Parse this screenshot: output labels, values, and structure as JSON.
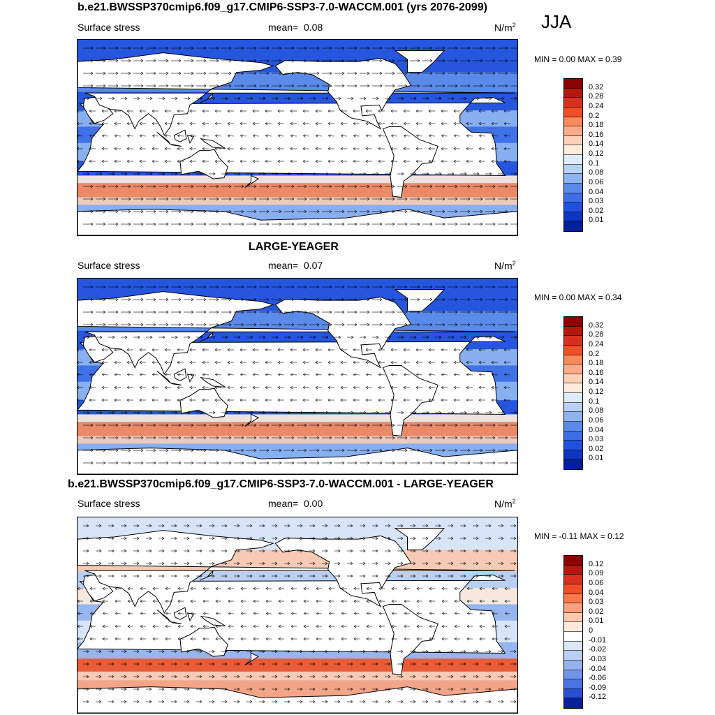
{
  "season": "JJA",
  "panels": [
    {
      "title": "b.e21.BWSSP370cmip6.f09_g17.CMIP6-SSP3-7.0-WACCM.001 (yrs 2076-2099)",
      "variable": "Surface stress",
      "mean_label": "mean=",
      "mean_value": "0.08",
      "units_base": "N/m",
      "units_exp": "2",
      "minmax": "MIN =   0.00 MAX =   0.39",
      "levels": [
        "0.32",
        "0.28",
        "0.24",
        "0.2",
        "0.18",
        "0.16",
        "0.14",
        "0.12",
        "0.1",
        "0.08",
        "0.06",
        "0.04",
        "0.03",
        "0.02",
        "0.01"
      ]
    },
    {
      "title": "LARGE-YEAGER",
      "variable": "Surface stress",
      "mean_label": "mean=",
      "mean_value": "0.07",
      "units_base": "N/m",
      "units_exp": "2",
      "minmax": "MIN =   0.00 MAX =   0.34",
      "levels": [
        "0.32",
        "0.28",
        "0.24",
        "0.2",
        "0.18",
        "0.16",
        "0.14",
        "0.12",
        "0.1",
        "0.08",
        "0.06",
        "0.04",
        "0.03",
        "0.02",
        "0.01"
      ]
    },
    {
      "title": "b.e21.BWSSP370cmip6.f09_g17.CMIP6-SSP3-7.0-WACCM.001 - LARGE-YEAGER",
      "variable": "Surface stress",
      "mean_label": "mean=",
      "mean_value": "0.00",
      "units_base": "N/m",
      "units_exp": "2",
      "minmax": "MIN =  -0.11 MAX =   0.12",
      "levels": [
        "0.12",
        "0.09",
        "0.06",
        "0.04",
        "0.03",
        "0.02",
        "0.01",
        "0",
        "-0.01",
        "-0.02",
        "-0.03",
        "-0.04",
        "-0.06",
        "-0.09",
        "-0.12"
      ]
    }
  ],
  "colors": {
    "seq_scale": [
      "#8b0000",
      "#b2180b",
      "#d7301f",
      "#ef4f24",
      "#fa8a5a",
      "#fcab8a",
      "#fdd0b8",
      "#fdebdc",
      "#deebfa",
      "#b7d2f6",
      "#8db3f0",
      "#5b8bea",
      "#3d6ee6",
      "#2050dc",
      "#0c35c0",
      "#00209a"
    ],
    "diff_scale": [
      "#8b0000",
      "#b2180b",
      "#d7301f",
      "#ef4f24",
      "#f8794a",
      "#fba07c",
      "#fdc9ae",
      "#fdeadd",
      "#ffffff",
      "#dbe6f8",
      "#b9cff4",
      "#93b2ee",
      "#6e93e8",
      "#4a72e0",
      "#2a4fd4",
      "#08209a"
    ],
    "land": "#ffffff",
    "coastline": "#000000"
  }
}
